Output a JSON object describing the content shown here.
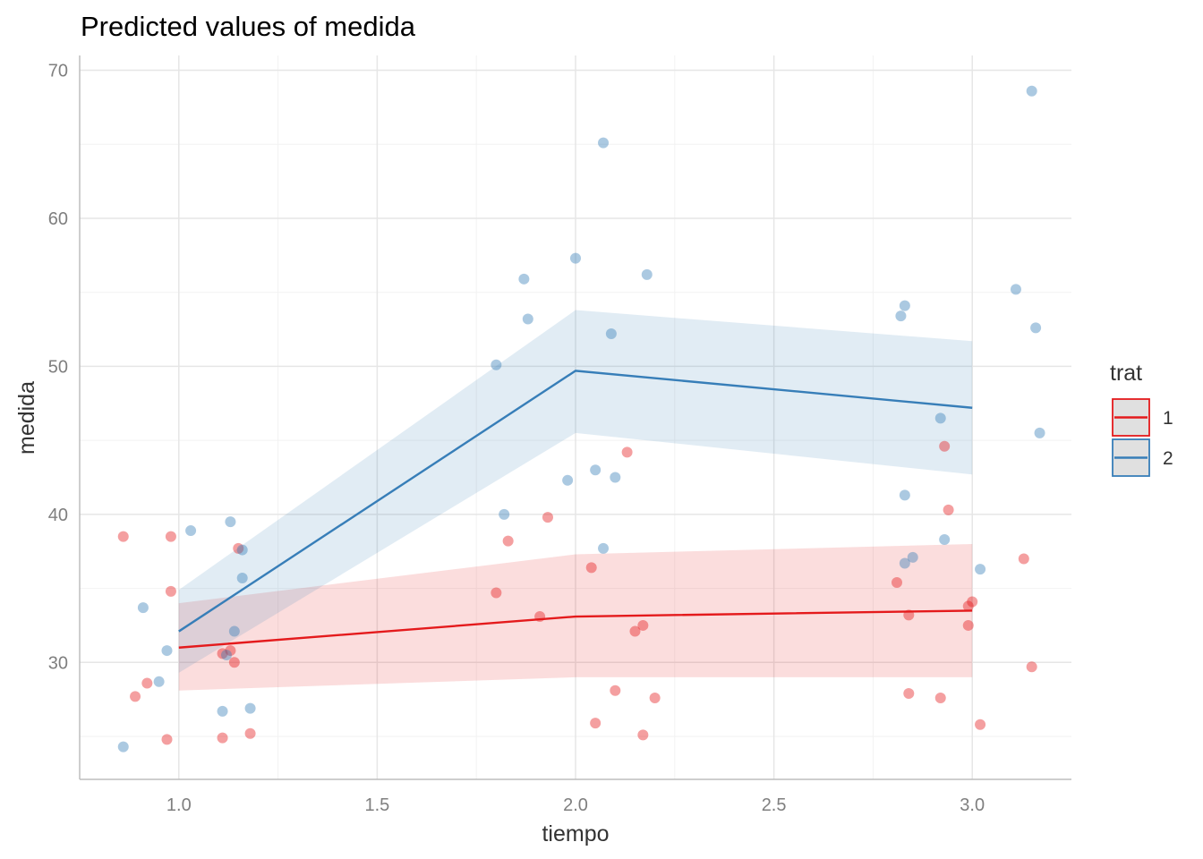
{
  "chart_data": {
    "type": "line",
    "title": "Predicted values of medida",
    "xlabel": "tiempo",
    "ylabel": "medida",
    "xlim": [
      0.75,
      3.25
    ],
    "ylim": [
      22.1,
      71.0
    ],
    "x_ticks": [
      1.0,
      1.5,
      2.0,
      2.5,
      3.0
    ],
    "x_tick_labels": [
      "1.0",
      "1.5",
      "2.0",
      "2.5",
      "3.0"
    ],
    "y_ticks": [
      30,
      40,
      50,
      60,
      70
    ],
    "y_tick_labels": [
      "30",
      "40",
      "50",
      "60",
      "70"
    ],
    "grid": true,
    "legend": {
      "title": "trat",
      "position": "right"
    },
    "series": [
      {
        "name": "1",
        "color": "#e41a1c",
        "ribbon_color": "#f4c2c3",
        "x": [
          1,
          2,
          3
        ],
        "fit": [
          31.0,
          33.1,
          33.5
        ],
        "conf_low": [
          28.1,
          29.0,
          29.0
        ],
        "conf_high": [
          34.0,
          37.3,
          38.0
        ],
        "points": [
          [
            0.86,
            38.5
          ],
          [
            0.89,
            27.7
          ],
          [
            0.92,
            28.6
          ],
          [
            0.97,
            24.8
          ],
          [
            0.98,
            34.8
          ],
          [
            0.98,
            38.5
          ],
          [
            1.11,
            30.6
          ],
          [
            1.11,
            24.9
          ],
          [
            1.13,
            30.8
          ],
          [
            1.14,
            30.0
          ],
          [
            1.15,
            37.7
          ],
          [
            1.18,
            25.2
          ],
          [
            1.8,
            34.7
          ],
          [
            1.83,
            38.2
          ],
          [
            1.91,
            33.1
          ],
          [
            1.93,
            39.8
          ],
          [
            2.04,
            36.4
          ],
          [
            2.05,
            25.9
          ],
          [
            2.1,
            28.1
          ],
          [
            2.13,
            44.2
          ],
          [
            2.15,
            32.1
          ],
          [
            2.17,
            25.1
          ],
          [
            2.17,
            32.5
          ],
          [
            2.2,
            27.6
          ],
          [
            2.81,
            35.4
          ],
          [
            2.84,
            27.9
          ],
          [
            2.84,
            33.2
          ],
          [
            2.92,
            27.6
          ],
          [
            2.93,
            44.6
          ],
          [
            2.94,
            40.3
          ],
          [
            2.99,
            32.5
          ],
          [
            2.99,
            33.8
          ],
          [
            3.0,
            34.1
          ],
          [
            3.02,
            25.8
          ],
          [
            3.13,
            37.0
          ],
          [
            3.15,
            29.7
          ]
        ]
      },
      {
        "name": "2",
        "color": "#377eb8",
        "ribbon_color": "#c6dbef",
        "x": [
          1,
          2,
          3
        ],
        "fit": [
          32.1,
          49.7,
          47.2
        ],
        "conf_low": [
          29.3,
          45.5,
          42.7
        ],
        "conf_high": [
          34.9,
          53.8,
          51.7
        ],
        "points": [
          [
            0.86,
            24.3
          ],
          [
            0.91,
            33.7
          ],
          [
            0.95,
            28.7
          ],
          [
            0.97,
            30.8
          ],
          [
            1.03,
            38.9
          ],
          [
            1.11,
            26.7
          ],
          [
            1.12,
            30.5
          ],
          [
            1.13,
            39.5
          ],
          [
            1.14,
            32.1
          ],
          [
            1.16,
            37.6
          ],
          [
            1.16,
            35.7
          ],
          [
            1.18,
            26.9
          ],
          [
            1.8,
            50.1
          ],
          [
            1.82,
            40.0
          ],
          [
            1.87,
            55.9
          ],
          [
            1.88,
            53.2
          ],
          [
            1.98,
            42.3
          ],
          [
            2.0,
            57.3
          ],
          [
            2.05,
            43.0
          ],
          [
            2.07,
            37.7
          ],
          [
            2.07,
            65.1
          ],
          [
            2.09,
            52.2
          ],
          [
            2.1,
            42.5
          ],
          [
            2.18,
            56.2
          ],
          [
            2.82,
            53.4
          ],
          [
            2.83,
            54.1
          ],
          [
            2.83,
            41.3
          ],
          [
            2.83,
            36.7
          ],
          [
            2.85,
            37.1
          ],
          [
            2.92,
            46.5
          ],
          [
            2.93,
            38.3
          ],
          [
            3.02,
            36.3
          ],
          [
            3.11,
            55.2
          ],
          [
            3.15,
            68.6
          ],
          [
            3.16,
            52.6
          ],
          [
            3.17,
            45.5
          ]
        ]
      }
    ]
  }
}
